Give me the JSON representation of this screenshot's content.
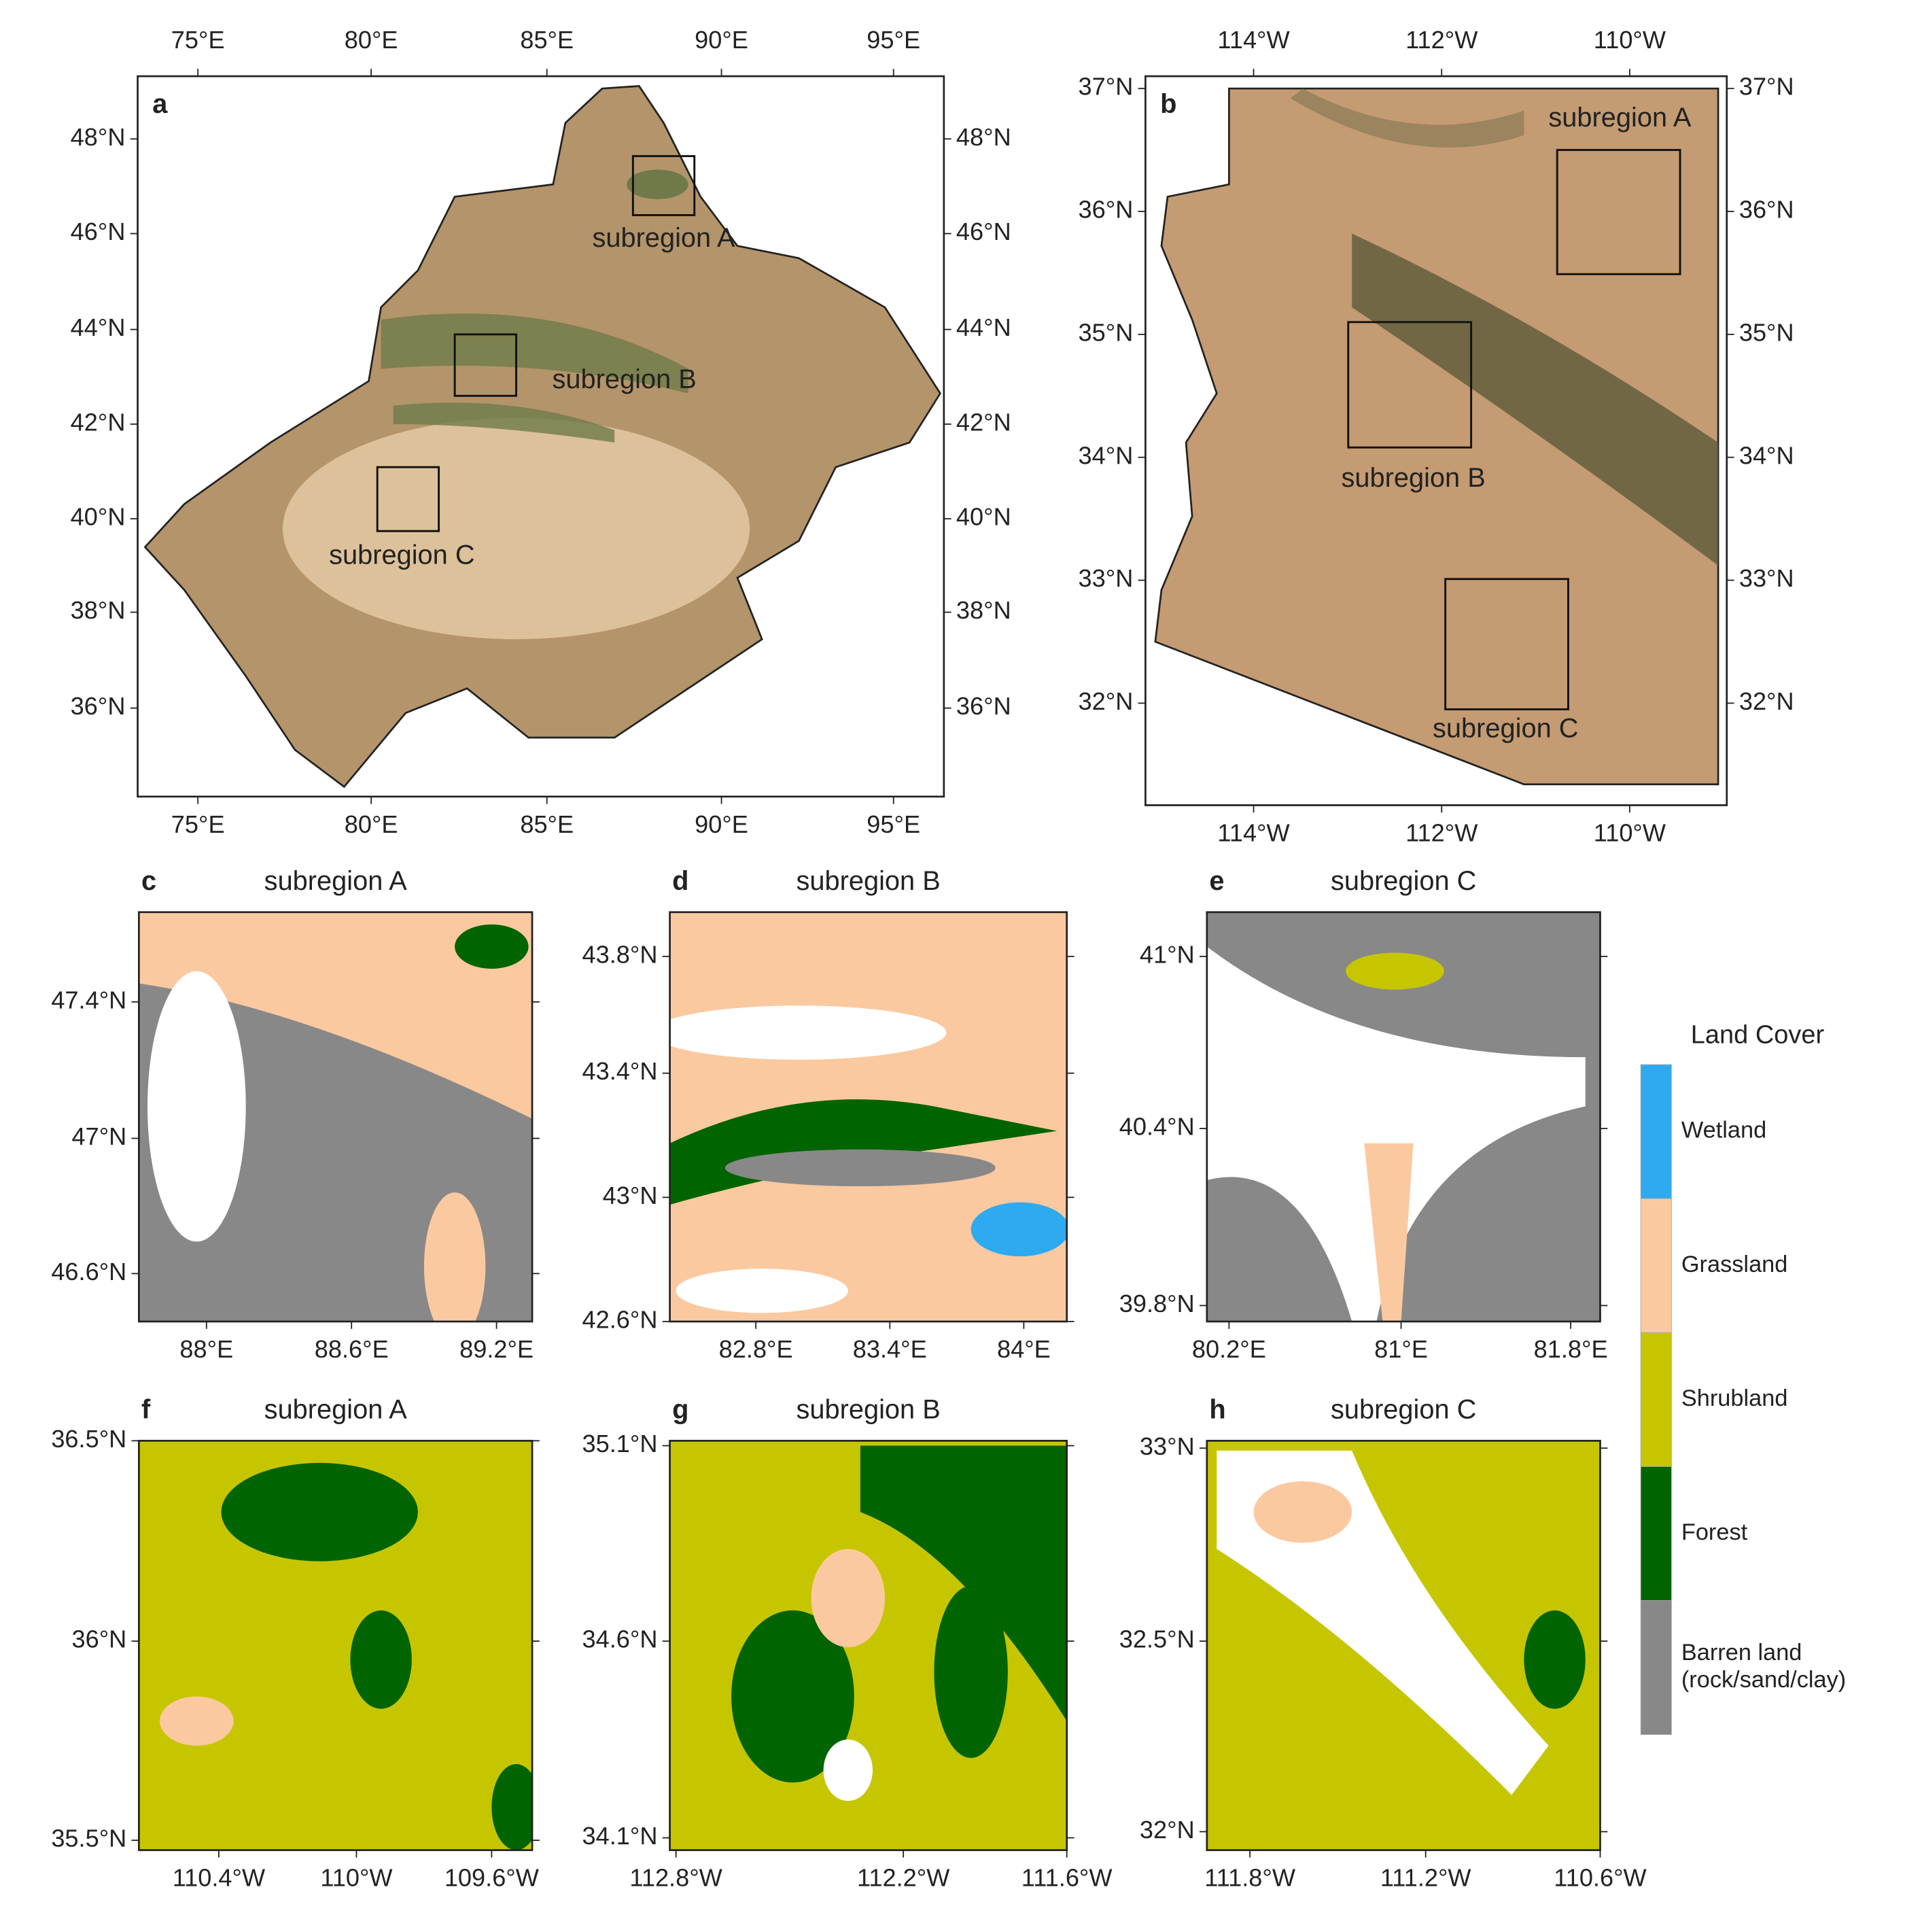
{
  "panels": [
    {
      "letter": "a",
      "subregions": [
        "subregion A",
        "subregion B",
        "subregion C"
      ],
      "x_ticks": [
        "75°E",
        "80°E",
        "85°E",
        "90°E",
        "95°E"
      ],
      "y_ticks": [
        "48°N",
        "46°N",
        "44°N",
        "42°N",
        "40°N",
        "38°N",
        "36°N"
      ]
    },
    {
      "letter": "b",
      "subregions": [
        "subregion A",
        "subregion B",
        "subregion C"
      ],
      "x_ticks": [
        "114°W",
        "112°W",
        "110°W"
      ],
      "y_ticks": [
        "37°N",
        "36°N",
        "35°N",
        "34°N",
        "33°N",
        "32°N"
      ]
    },
    {
      "letter": "c",
      "title": "subregion A",
      "x_ticks": [
        "88°E",
        "88.6°E",
        "89.2°E"
      ],
      "y_ticks": [
        "47.4°N",
        "47°N",
        "46.6°N"
      ]
    },
    {
      "letter": "d",
      "title": "subregion B",
      "x_ticks": [
        "82.8°E",
        "83.4°E",
        "84°E"
      ],
      "y_ticks": [
        "43.8°N",
        "43.4°N",
        "43°N",
        "42.6°N"
      ]
    },
    {
      "letter": "e",
      "title": "subregion C",
      "x_ticks": [
        "80.2°E",
        "81°E",
        "81.8°E"
      ],
      "y_ticks": [
        "41°N",
        "40.4°N",
        "39.8°N"
      ]
    },
    {
      "letter": "f",
      "title": "subregion A",
      "x_ticks": [
        "110.4°W",
        "110°W",
        "109.6°W"
      ],
      "y_ticks": [
        "36.5°N",
        "36°N",
        "35.5°N"
      ]
    },
    {
      "letter": "g",
      "title": "subregion B",
      "x_ticks": [
        "112.8°W",
        "112.2°W",
        "111.6°W"
      ],
      "y_ticks": [
        "35.1°N",
        "34.6°N",
        "34.1°N"
      ]
    },
    {
      "letter": "h",
      "title": "subregion C",
      "x_ticks": [
        "111.8°W",
        "111.2°W",
        "110.6°W"
      ],
      "y_ticks": [
        "33°N",
        "32.5°N",
        "32°N"
      ]
    }
  ],
  "legend": {
    "title": "Land Cover",
    "classes": [
      {
        "lines": [
          "Wetland"
        ],
        "color": "#2eaaf0"
      },
      {
        "lines": [
          "Grassland"
        ],
        "color": "#fbc9a0"
      },
      {
        "lines": [
          "Shrubland"
        ],
        "color": "#c6c600"
      },
      {
        "lines": [
          "Forest"
        ],
        "color": "#006400"
      },
      {
        "lines": [
          "Barren land",
          "(rock/sand/clay)"
        ],
        "color": "#888888"
      }
    ]
  }
}
